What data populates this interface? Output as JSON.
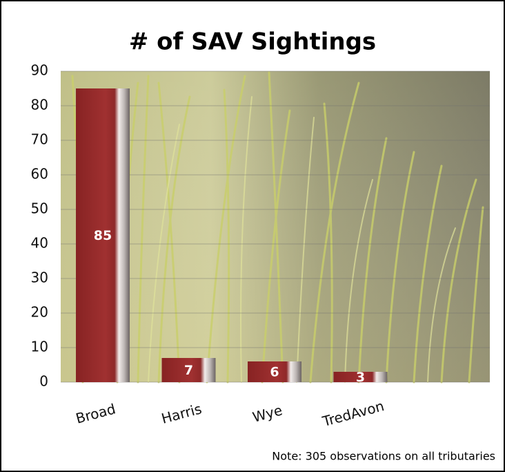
{
  "chart_data": {
    "type": "bar",
    "title": "# of SAV Sightings",
    "categories": [
      "Broad",
      "Harris",
      "Wye",
      "TredAvon"
    ],
    "values": [
      85,
      7,
      6,
      3
    ],
    "color": "#9b2a2a",
    "ylim": [
      0,
      90
    ],
    "yticks": [
      0,
      10,
      20,
      30,
      40,
      50,
      60,
      70,
      80,
      90
    ],
    "grid": true,
    "annotation": "Note: 305 observations on all tributaries"
  }
}
